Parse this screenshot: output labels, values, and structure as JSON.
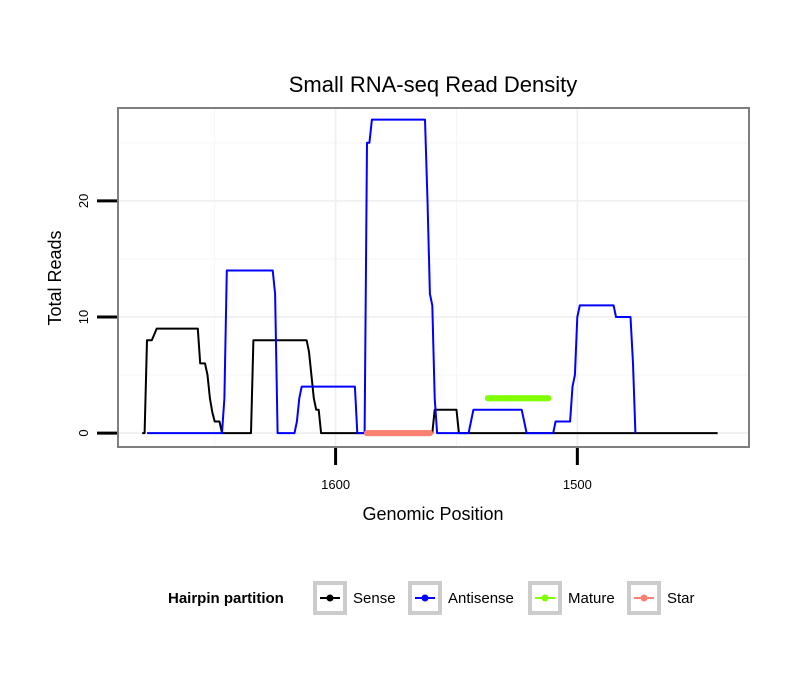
{
  "chart_data": {
    "type": "line",
    "title": "Small RNA-seq Read Density",
    "xlabel": "Genomic Position",
    "ylabel": "Total Reads",
    "x_reversed": true,
    "xlim": [
      1690,
      1429
    ],
    "ylim": [
      -1.2,
      28
    ],
    "x_ticks": [
      1600,
      1500
    ],
    "x_tick_labels": [
      "1600",
      "1500"
    ],
    "y_ticks": [
      0,
      10,
      20
    ],
    "y_tick_labels": [
      "0",
      "10",
      "20"
    ],
    "grid": true,
    "legend": {
      "title": "Hairpin partition",
      "placement": "bottom",
      "entries": [
        "Sense",
        "Antisense",
        "Mature",
        "Star"
      ]
    },
    "series": [
      {
        "name": "Sense",
        "color": "#000000",
        "points": [
          [
            1680,
            0
          ],
          [
            1679,
            0
          ],
          [
            1678,
            8
          ],
          [
            1676,
            8
          ],
          [
            1675,
            8.5
          ],
          [
            1674,
            9
          ],
          [
            1657,
            9
          ],
          [
            1656,
            6
          ],
          [
            1654,
            6
          ],
          [
            1653,
            5
          ],
          [
            1652,
            3
          ],
          [
            1651,
            1.8
          ],
          [
            1650,
            1
          ],
          [
            1648,
            1
          ],
          [
            1647,
            0
          ],
          [
            1635,
            0
          ],
          [
            1634,
            8
          ],
          [
            1612,
            8
          ],
          [
            1611,
            7
          ],
          [
            1610,
            5
          ],
          [
            1609,
            3
          ],
          [
            1608,
            2
          ],
          [
            1607,
            2
          ],
          [
            1606,
            0
          ],
          [
            1560,
            0
          ],
          [
            1559,
            2
          ],
          [
            1550,
            2
          ],
          [
            1549,
            0
          ],
          [
            1515,
            0
          ],
          [
            1514,
            0
          ],
          [
            1442,
            0
          ]
        ]
      },
      {
        "name": "Antisense",
        "color": "#0000ff",
        "points": [
          [
            1678,
            0
          ],
          [
            1647,
            0
          ],
          [
            1646,
            3
          ],
          [
            1645,
            14
          ],
          [
            1626,
            14
          ],
          [
            1625,
            12
          ],
          [
            1624,
            0
          ],
          [
            1617,
            0
          ],
          [
            1616,
            1
          ],
          [
            1615,
            3
          ],
          [
            1614,
            4
          ],
          [
            1592,
            4
          ],
          [
            1591,
            0
          ],
          [
            1588,
            0
          ],
          [
            1587,
            25
          ],
          [
            1586,
            25
          ],
          [
            1585,
            27
          ],
          [
            1563,
            27
          ],
          [
            1562,
            20
          ],
          [
            1561,
            12
          ],
          [
            1560,
            11
          ],
          [
            1559,
            3
          ],
          [
            1558,
            0
          ],
          [
            1545,
            0
          ],
          [
            1544,
            1
          ],
          [
            1543,
            2
          ],
          [
            1523,
            2
          ],
          [
            1522,
            1
          ],
          [
            1521,
            0
          ],
          [
            1510,
            0
          ],
          [
            1509,
            1
          ],
          [
            1503,
            1
          ],
          [
            1502,
            4
          ],
          [
            1501,
            5
          ],
          [
            1500,
            10
          ],
          [
            1499,
            11
          ],
          [
            1485,
            11
          ],
          [
            1484,
            10
          ],
          [
            1478,
            10
          ],
          [
            1477,
            6
          ],
          [
            1476,
            0
          ]
        ]
      },
      {
        "name": "Mature",
        "color": "#7fff00",
        "points": [
          [
            1537,
            3
          ],
          [
            1512,
            3
          ]
        ]
      },
      {
        "name": "Star",
        "color": "#fa8072",
        "points": [
          [
            1587,
            0
          ],
          [
            1561,
            0
          ]
        ]
      }
    ]
  }
}
